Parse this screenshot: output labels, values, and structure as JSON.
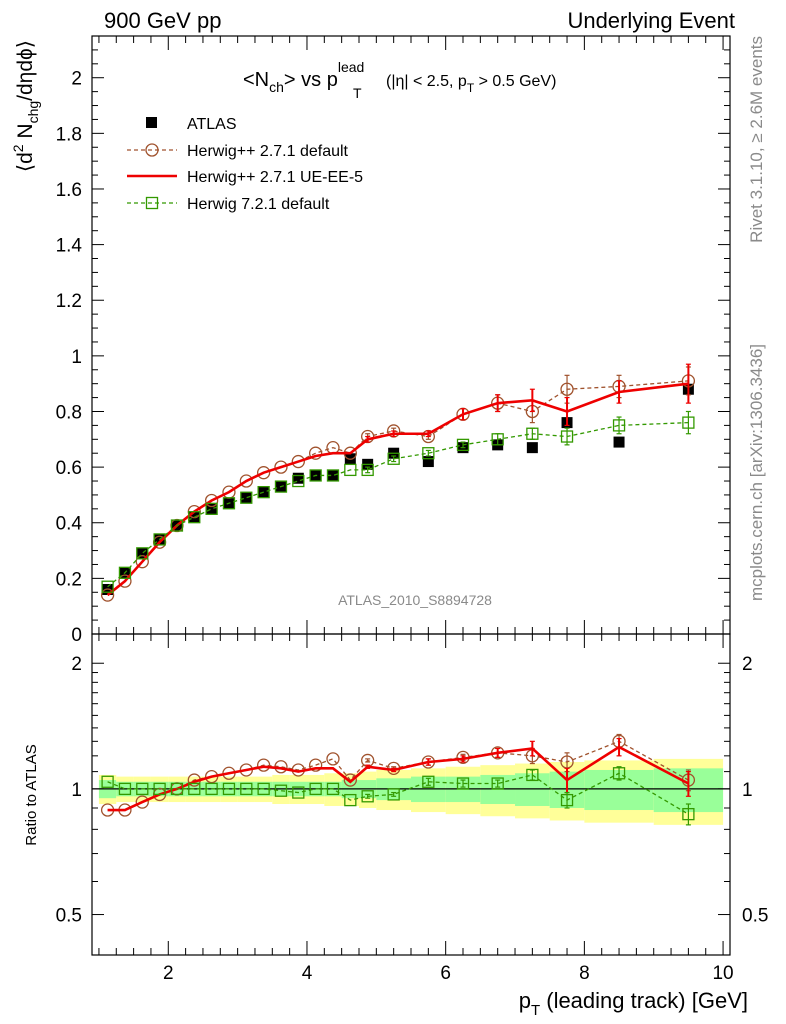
{
  "header": {
    "left": "900 GeV pp",
    "right": "Underlying Event"
  },
  "side_labels": {
    "rivet": "Rivet 3.1.10, ≥ 2.6M events",
    "mcplots": "mcplots.cern.ch [arXiv:1306.3436]"
  },
  "watermark": "ATLAS_2010_S8894728",
  "colors": {
    "atlas": "#000000",
    "herwig271_default": "#a0522d",
    "herwig271_ueee5": "#ee0000",
    "herwig721_default": "#339900",
    "band_outer": "#ffff99",
    "band_inner": "#99ff99"
  },
  "chart_data": [
    {
      "type": "scatter",
      "panel": "main",
      "title_parts": {
        "lt": "<N",
        "sub": "ch",
        "gt": "> vs p",
        "sup_lead": "lead",
        "sub_T": "T",
        "cut_a": "(|η| < 2.5, p",
        "cut_sub": "T",
        "cut_b": " > 0.5 GeV)"
      },
      "ylabel_parts": {
        "open": "⟨d",
        "sup2": "2",
        "mid": " N",
        "sub": "chg",
        "tail": "/dηdϕ⟩"
      },
      "xlabel_parts": {
        "p": "p",
        "sub": "T",
        "rest": " (leading track) [GeV]"
      },
      "xlim": [
        0.9,
        10.1
      ],
      "ylim": [
        0,
        2.15
      ],
      "yticks": [
        0,
        0.2,
        0.4,
        0.6,
        0.8,
        1,
        1.2,
        1.4,
        1.6,
        1.8,
        2
      ],
      "ytick_labels": [
        "0",
        "0.2",
        "0.4",
        "0.6",
        "0.8",
        "1",
        "1.2",
        "1.4",
        "1.6",
        "1.8",
        "2"
      ],
      "legend_position": "top-left",
      "series": [
        {
          "name": "ATLAS",
          "style": "data",
          "x": [
            1.125,
            1.375,
            1.625,
            1.875,
            2.125,
            2.375,
            2.625,
            2.875,
            3.125,
            3.375,
            3.625,
            3.875,
            4.125,
            4.375,
            4.625,
            4.875,
            5.25,
            5.75,
            6.25,
            6.75,
            7.25,
            7.75,
            8.5,
            9.5
          ],
          "y": [
            0.16,
            0.22,
            0.29,
            0.34,
            0.39,
            0.42,
            0.45,
            0.47,
            0.49,
            0.51,
            0.53,
            0.56,
            0.57,
            0.57,
            0.63,
            0.61,
            0.65,
            0.62,
            0.67,
            0.68,
            0.67,
            0.76,
            0.69,
            0.88
          ]
        },
        {
          "name": "Herwig++ 2.7.1 default",
          "style": "circle-dashed",
          "x": [
            1.125,
            1.375,
            1.625,
            1.875,
            2.125,
            2.375,
            2.625,
            2.875,
            3.125,
            3.375,
            3.625,
            3.875,
            4.125,
            4.375,
            4.625,
            4.875,
            5.25,
            5.75,
            6.25,
            6.75,
            7.25,
            7.75,
            8.5,
            9.5
          ],
          "y": [
            0.14,
            0.19,
            0.26,
            0.33,
            0.39,
            0.44,
            0.48,
            0.51,
            0.55,
            0.58,
            0.6,
            0.62,
            0.65,
            0.67,
            0.65,
            0.71,
            0.73,
            0.71,
            0.79,
            0.83,
            0.8,
            0.88,
            0.89,
            0.91
          ],
          "yerr": [
            0,
            0,
            0,
            0,
            0,
            0,
            0,
            0,
            0,
            0,
            0,
            0,
            0,
            0,
            0,
            0.01,
            0.01,
            0.01,
            0.02,
            0.03,
            0.04,
            0.05,
            0.04,
            0.05
          ]
        },
        {
          "name": "Herwig++ 2.7.1 UE-EE-5",
          "style": "solid-line",
          "x": [
            1.125,
            1.375,
            1.625,
            1.875,
            2.125,
            2.375,
            2.625,
            2.875,
            3.125,
            3.375,
            3.625,
            3.875,
            4.125,
            4.375,
            4.625,
            4.875,
            5.25,
            5.75,
            6.25,
            6.75,
            7.25,
            7.75,
            8.5,
            9.5
          ],
          "y": [
            0.14,
            0.19,
            0.26,
            0.33,
            0.39,
            0.44,
            0.48,
            0.51,
            0.55,
            0.58,
            0.6,
            0.62,
            0.64,
            0.65,
            0.65,
            0.7,
            0.72,
            0.72,
            0.79,
            0.83,
            0.84,
            0.8,
            0.87,
            0.9
          ],
          "yerr": [
            0,
            0,
            0,
            0,
            0,
            0,
            0,
            0,
            0,
            0,
            0,
            0,
            0,
            0,
            0,
            0.01,
            0.01,
            0.01,
            0.02,
            0.03,
            0.04,
            0.05,
            0.04,
            0.07
          ]
        },
        {
          "name": "Herwig 7.2.1 default",
          "style": "square-dashed",
          "x": [
            1.125,
            1.375,
            1.625,
            1.875,
            2.125,
            2.375,
            2.625,
            2.875,
            3.125,
            3.375,
            3.625,
            3.875,
            4.125,
            4.375,
            4.625,
            4.875,
            5.25,
            5.75,
            6.25,
            6.75,
            7.25,
            7.75,
            8.5,
            9.5
          ],
          "y": [
            0.17,
            0.22,
            0.29,
            0.34,
            0.39,
            0.42,
            0.45,
            0.47,
            0.49,
            0.51,
            0.53,
            0.55,
            0.57,
            0.57,
            0.59,
            0.59,
            0.63,
            0.65,
            0.68,
            0.7,
            0.72,
            0.71,
            0.75,
            0.76
          ],
          "yerr": [
            0,
            0,
            0,
            0,
            0,
            0,
            0,
            0,
            0,
            0,
            0,
            0,
            0,
            0,
            0,
            0.01,
            0.01,
            0.01,
            0.01,
            0.02,
            0.02,
            0.03,
            0.03,
            0.04
          ]
        }
      ]
    },
    {
      "type": "line",
      "panel": "ratio",
      "ylabel": "Ratio to ATLAS",
      "xlim": [
        0.9,
        10.1
      ],
      "ylim": [
        0.4,
        2.35
      ],
      "yscale": "log",
      "xticks": [
        2,
        4,
        6,
        8,
        10
      ],
      "xtick_labels": [
        "2",
        "4",
        "6",
        "8",
        "10"
      ],
      "yticks": [
        0.5,
        1,
        2
      ],
      "ytick_labels": [
        "0.5",
        "1",
        "2"
      ],
      "bin_edges": [
        1.0,
        1.25,
        1.5,
        1.75,
        2.0,
        2.25,
        2.5,
        2.75,
        3.0,
        3.25,
        3.5,
        3.75,
        4.0,
        4.25,
        4.5,
        4.75,
        5.0,
        5.5,
        6.0,
        6.5,
        7.0,
        7.5,
        8.0,
        9.0,
        10.0
      ],
      "band_inner_halfwidth": [
        0.05,
        0.04,
        0.04,
        0.04,
        0.04,
        0.04,
        0.04,
        0.04,
        0.04,
        0.04,
        0.04,
        0.04,
        0.04,
        0.04,
        0.05,
        0.05,
        0.06,
        0.07,
        0.07,
        0.08,
        0.09,
        0.1,
        0.11,
        0.12
      ],
      "band_outer_halfwidth": [
        0.08,
        0.07,
        0.07,
        0.07,
        0.07,
        0.07,
        0.07,
        0.07,
        0.07,
        0.07,
        0.08,
        0.08,
        0.08,
        0.09,
        0.09,
        0.1,
        0.11,
        0.12,
        0.13,
        0.14,
        0.15,
        0.16,
        0.17,
        0.18
      ],
      "series": [
        {
          "name": "Herwig++ 2.7.1 default",
          "x": [
            1.125,
            1.375,
            1.625,
            1.875,
            2.125,
            2.375,
            2.625,
            2.875,
            3.125,
            3.375,
            3.625,
            3.875,
            4.125,
            4.375,
            4.625,
            4.875,
            5.25,
            5.75,
            6.25,
            6.75,
            7.25,
            7.75,
            8.5,
            9.5
          ],
          "y": [
            0.89,
            0.89,
            0.93,
            0.97,
            1.0,
            1.05,
            1.07,
            1.09,
            1.11,
            1.14,
            1.13,
            1.11,
            1.14,
            1.18,
            1.05,
            1.17,
            1.12,
            1.16,
            1.19,
            1.22,
            1.2,
            1.16,
            1.3,
            1.05
          ],
          "yerr": [
            0,
            0,
            0,
            0,
            0,
            0,
            0,
            0,
            0,
            0,
            0,
            0,
            0,
            0,
            0,
            0.01,
            0.01,
            0.02,
            0.02,
            0.03,
            0.05,
            0.06,
            0.05,
            0.06
          ]
        },
        {
          "name": "Herwig++ 2.7.1 UE-EE-5",
          "x": [
            1.125,
            1.375,
            1.625,
            1.875,
            2.125,
            2.375,
            2.625,
            2.875,
            3.125,
            3.375,
            3.625,
            3.875,
            4.125,
            4.375,
            4.625,
            4.875,
            5.25,
            5.75,
            6.25,
            6.75,
            7.25,
            7.75,
            8.5,
            9.5
          ],
          "y": [
            0.89,
            0.89,
            0.93,
            0.97,
            1.0,
            1.04,
            1.07,
            1.09,
            1.11,
            1.13,
            1.12,
            1.1,
            1.12,
            1.12,
            1.04,
            1.13,
            1.11,
            1.16,
            1.18,
            1.22,
            1.25,
            1.05,
            1.26,
            1.03
          ],
          "yerr": [
            0,
            0,
            0,
            0,
            0,
            0,
            0,
            0,
            0,
            0,
            0,
            0,
            0,
            0,
            0,
            0.01,
            0.01,
            0.02,
            0.02,
            0.03,
            0.05,
            0.07,
            0.06,
            0.07
          ]
        },
        {
          "name": "Herwig 7.2.1 default",
          "x": [
            1.125,
            1.375,
            1.625,
            1.875,
            2.125,
            2.375,
            2.625,
            2.875,
            3.125,
            3.375,
            3.625,
            3.875,
            4.125,
            4.375,
            4.625,
            4.875,
            5.25,
            5.75,
            6.25,
            6.75,
            7.25,
            7.75,
            8.5,
            9.5
          ],
          "y": [
            1.04,
            1.0,
            1.0,
            1.0,
            1.0,
            1.0,
            1.0,
            1.0,
            1.0,
            1.0,
            0.99,
            0.98,
            1.0,
            1.0,
            0.94,
            0.96,
            0.97,
            1.04,
            1.03,
            1.03,
            1.08,
            0.94,
            1.09,
            0.87
          ],
          "yerr": [
            0,
            0,
            0,
            0,
            0,
            0,
            0,
            0,
            0,
            0,
            0,
            0,
            0,
            0,
            0,
            0.01,
            0.01,
            0.02,
            0.02,
            0.02,
            0.03,
            0.04,
            0.04,
            0.05
          ]
        }
      ]
    }
  ]
}
